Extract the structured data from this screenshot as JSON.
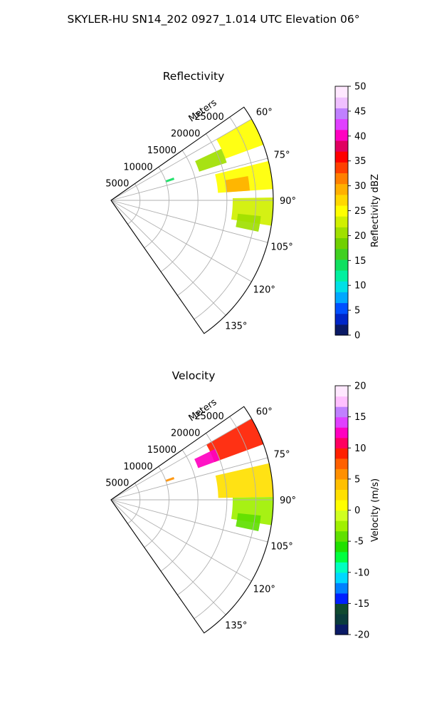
{
  "figure": {
    "suptitle": "SKYLER-HU  SN14_202  0927_1.014 UTC Elevation 06°"
  },
  "chart_data": [
    {
      "type": "heatmap",
      "subtype": "polar-sector",
      "title": "Reflectivity",
      "range_label": "Meters",
      "range_ticks": [
        5000,
        10000,
        15000,
        20000,
        25000
      ],
      "rlim": [
        0,
        28000
      ],
      "azimuth_ticks": [
        "60°",
        "75°",
        "90°",
        "105°",
        "120°",
        "135°"
      ],
      "azimuth_tick_values": [
        60,
        75,
        90,
        105,
        120,
        135
      ],
      "azimuth_range": [
        55,
        145
      ],
      "grid": true,
      "colorbar": {
        "label": "Reflectivity dBZ",
        "min": 0,
        "max": 50,
        "ticks": [
          0,
          5,
          10,
          15,
          20,
          25,
          30,
          35,
          40,
          45,
          50
        ],
        "colors": [
          "#0a1a66",
          "#0026c8",
          "#0050ff",
          "#00a8ff",
          "#00e0e6",
          "#00f0a0",
          "#10e060",
          "#40d020",
          "#70d000",
          "#a0e000",
          "#d0f000",
          "#ffff00",
          "#ffd800",
          "#ffb000",
          "#ff8000",
          "#ff4000",
          "#ff0000",
          "#e00060",
          "#ff00c0",
          "#e040ff",
          "#c080ff",
          "#f0c0ff",
          "#ffe8ff"
        ]
      },
      "echoes": [
        {
          "az_from": 60,
          "az_to": 70,
          "r_from": 21000,
          "r_to": 28000,
          "value": 24
        },
        {
          "az_from": 65,
          "az_to": 72,
          "r_from": 16000,
          "r_to": 21000,
          "value": 20
        },
        {
          "az_from": 76,
          "az_to": 86,
          "r_from": 18500,
          "r_to": 28000,
          "value": 24
        },
        {
          "az_from": 80,
          "az_to": 86,
          "r_from": 20000,
          "r_to": 24000,
          "value": 30
        },
        {
          "az_from": 89,
          "az_to": 99,
          "r_from": 21000,
          "r_to": 28000,
          "value": 22
        },
        {
          "az_from": 96,
          "az_to": 102,
          "r_from": 22000,
          "r_to": 26000,
          "value": 20
        },
        {
          "az_from": 70,
          "az_to": 72,
          "r_from": 10000,
          "r_to": 11500,
          "value": 14
        }
      ]
    },
    {
      "type": "heatmap",
      "subtype": "polar-sector",
      "title": "Velocity",
      "range_label": "Meters",
      "range_ticks": [
        5000,
        10000,
        15000,
        20000,
        25000
      ],
      "rlim": [
        0,
        28000
      ],
      "azimuth_ticks": [
        "60°",
        "75°",
        "90°",
        "105°",
        "120°",
        "135°"
      ],
      "azimuth_tick_values": [
        60,
        75,
        90,
        105,
        120,
        135
      ],
      "azimuth_range": [
        55,
        145
      ],
      "grid": true,
      "colorbar": {
        "label": "Velocity (m/s)",
        "min": -20,
        "max": 20,
        "ticks": [
          -20,
          -15,
          -10,
          -5,
          0,
          5,
          10,
          15,
          20
        ],
        "colors": [
          "#0a1a66",
          "#0a3c3c",
          "#104a30",
          "#0020ff",
          "#0080ff",
          "#00d8ff",
          "#00ffc0",
          "#00ff40",
          "#20e000",
          "#60e000",
          "#a0f000",
          "#d0ff20",
          "#ffff00",
          "#ffe000",
          "#ffc000",
          "#ff9000",
          "#ff6000",
          "#ff2000",
          "#ff0060",
          "#ff00c0",
          "#e040ff",
          "#c080ff",
          "#ffc0ff",
          "#ffe8ff"
        ]
      },
      "echoes": [
        {
          "az_from": 60,
          "az_to": 70,
          "r_from": 19000,
          "r_to": 28000,
          "value": 9
        },
        {
          "az_from": 64,
          "az_to": 70,
          "r_from": 16000,
          "r_to": 20000,
          "value": 12
        },
        {
          "az_from": 77,
          "az_to": 89,
          "r_from": 18500,
          "r_to": 28000,
          "value": 3
        },
        {
          "az_from": 89,
          "az_to": 99,
          "r_from": 21000,
          "r_to": 28000,
          "value": -2
        },
        {
          "az_from": 96,
          "az_to": 102,
          "r_from": 22000,
          "r_to": 26000,
          "value": -4
        },
        {
          "az_from": 70,
          "az_to": 72,
          "r_from": 10000,
          "r_to": 11500,
          "value": 6
        }
      ]
    }
  ]
}
